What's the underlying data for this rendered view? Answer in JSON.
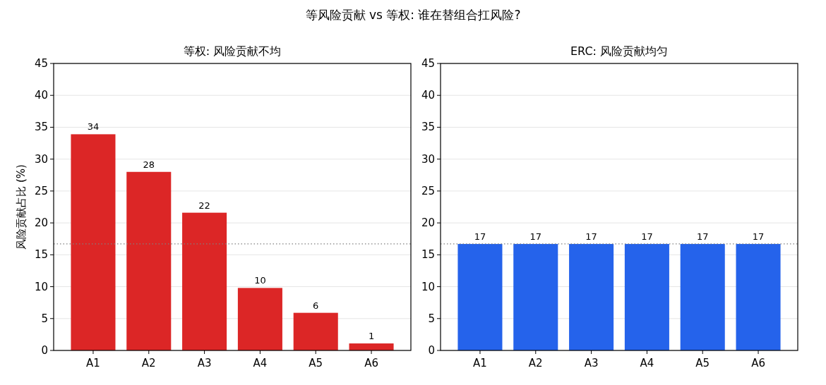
{
  "chart_data": [
    {
      "type": "bar",
      "title": "等风险贡献 vs 等权: 谁在替组合扛风险?",
      "subtitle": "等权: 风险贡献不均",
      "ylabel": "风险贡献占比 (%)",
      "categories": [
        "A1",
        "A2",
        "A3",
        "A4",
        "A5",
        "A6"
      ],
      "values": [
        33.9,
        28.0,
        21.6,
        9.8,
        5.9,
        1.1
      ],
      "value_labels": [
        "34",
        "28",
        "22",
        "10",
        "6",
        "1"
      ],
      "color": "#dc2626",
      "ylim": [
        0,
        45
      ],
      "yticks": [
        0,
        5,
        10,
        15,
        20,
        25,
        30,
        35,
        40,
        45
      ],
      "grid": "y",
      "ref_lines": [
        {
          "axis": "y",
          "value": 16.7,
          "color": "#808080",
          "line_style": "dotted"
        }
      ]
    },
    {
      "type": "bar",
      "subtitle": "ERC: 风险贡献均匀",
      "categories": [
        "A1",
        "A2",
        "A3",
        "A4",
        "A5",
        "A6"
      ],
      "values": [
        16.7,
        16.7,
        16.7,
        16.7,
        16.7,
        16.7
      ],
      "value_labels": [
        "17",
        "17",
        "17",
        "17",
        "17",
        "17"
      ],
      "color": "#2563eb",
      "ylim": [
        0,
        45
      ],
      "yticks": [
        0,
        5,
        10,
        15,
        20,
        25,
        30,
        35,
        40,
        45
      ],
      "grid": "y",
      "ref_lines": [
        {
          "axis": "y",
          "value": 16.7,
          "color": "#808080",
          "line_style": "dotted"
        }
      ]
    }
  ]
}
